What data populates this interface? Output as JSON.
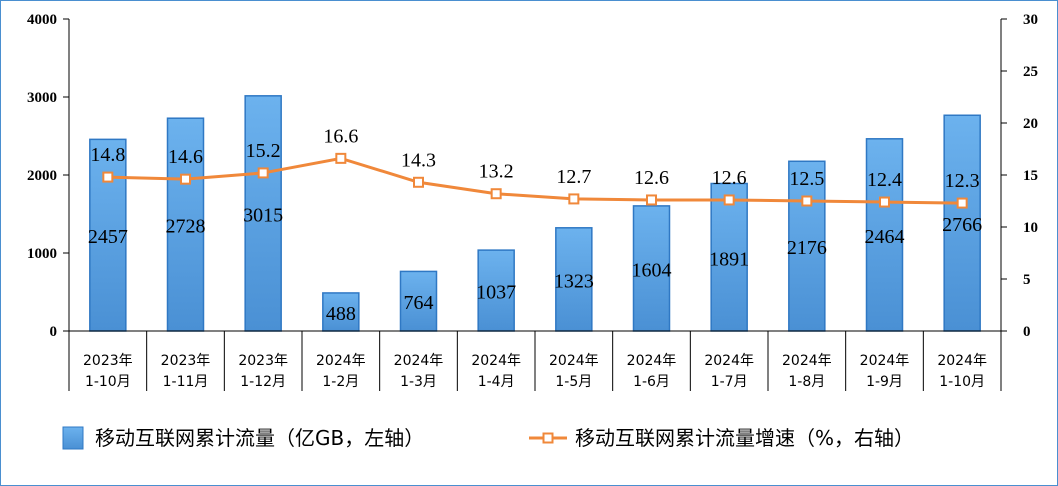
{
  "chart_data": {
    "type": "bar",
    "categories": [
      [
        "2023年",
        "1-10月"
      ],
      [
        "2023年",
        "1-11月"
      ],
      [
        "2023年",
        "1-12月"
      ],
      [
        "2024年",
        "1-2月"
      ],
      [
        "2024年",
        "1-3月"
      ],
      [
        "2024年",
        "1-4月"
      ],
      [
        "2024年",
        "1-5月"
      ],
      [
        "2024年",
        "1-6月"
      ],
      [
        "2024年",
        "1-7月"
      ],
      [
        "2024年",
        "1-8月"
      ],
      [
        "2024年",
        "1-9月"
      ],
      [
        "2024年",
        "1-10月"
      ]
    ],
    "series": [
      {
        "name": "移动互联网累计流量（亿GB，左轴）",
        "type": "bar",
        "axis": "left",
        "color": "#5ba3e6",
        "values": [
          2457,
          2728,
          3015,
          488,
          764,
          1037,
          1323,
          1604,
          1891,
          2176,
          2464,
          2766
        ]
      },
      {
        "name": "移动互联网累计流量增速（%，右轴）",
        "type": "line",
        "axis": "right",
        "color": "#f0883a",
        "values": [
          14.8,
          14.6,
          15.2,
          16.6,
          14.3,
          13.2,
          12.7,
          12.6,
          12.6,
          12.5,
          12.4,
          12.3
        ]
      }
    ],
    "y_left": {
      "min": 0,
      "max": 4000,
      "ticks": [
        0,
        1000,
        2000,
        3000,
        4000
      ]
    },
    "y_right": {
      "min": 0,
      "max": 30,
      "ticks": [
        0,
        5,
        10,
        15,
        20,
        25,
        30
      ]
    },
    "grid": false,
    "legend": "bottom"
  }
}
